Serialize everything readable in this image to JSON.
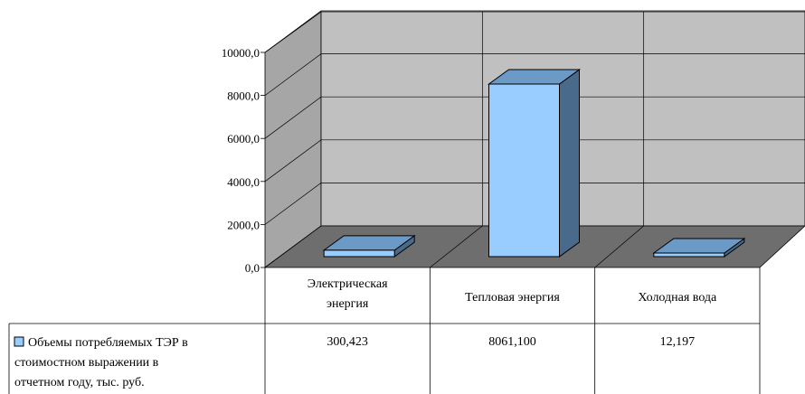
{
  "chart_data": {
    "type": "bar",
    "categories": [
      [
        "Электрическая",
        "энергия"
      ],
      [
        "Тепловая энергия"
      ],
      [
        "Холодная вода"
      ]
    ],
    "series": [
      {
        "name": [
          "Объемы потребляемых ТЭР в",
          "стоимостном выражении в",
          "отчетном году, тыс. руб."
        ],
        "values": [
          300.423,
          8061.1,
          12.197
        ],
        "value_labels": [
          "300,423",
          "8061,100",
          "12,197"
        ]
      }
    ],
    "y_ticks": [
      "0,0",
      "2000,0",
      "4000,0",
      "6000,0",
      "8000,0",
      "10000,0"
    ],
    "ylim": [
      0,
      10000
    ],
    "grid": true,
    "three_d": true,
    "legend": "data-table",
    "colors": {
      "bar_front": "#99ccff",
      "bar_top": "#6b9ac7",
      "bar_side": "#4a6a8c",
      "back_wall": "#c0c0c0",
      "side_wall": "#a6a6a6",
      "floor": "#6e6e6e"
    }
  }
}
